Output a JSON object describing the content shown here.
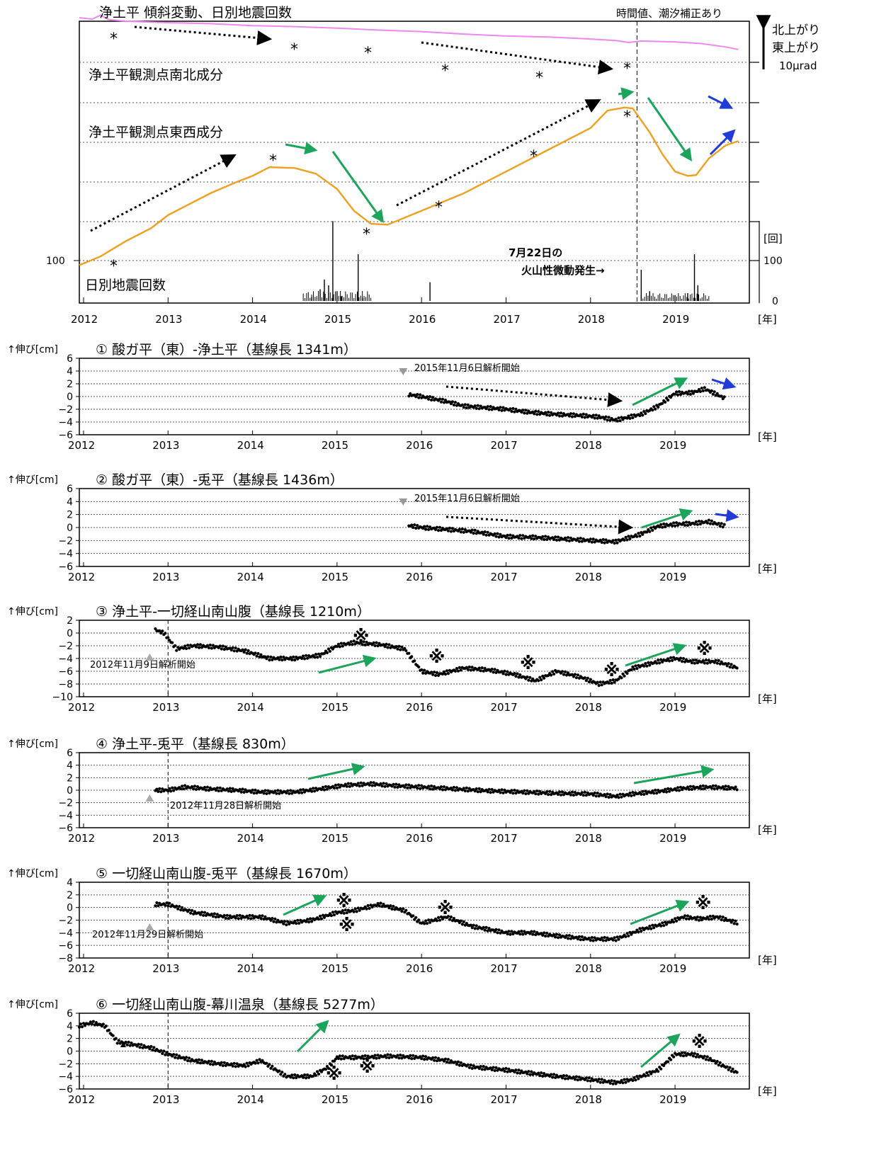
{
  "top_panel": {
    "title": "浄土平 傾斜変動、日別地震回数",
    "note": "時間値、潮汐補正あり",
    "scale_label_1": "北上がり",
    "scale_label_2": "東上がり",
    "scale_value": "10μrad",
    "event_label_1": "7月22日の",
    "event_label_2": "火山性微動発生→"
  },
  "chart_data": [
    {
      "type": "line",
      "title": "浄土平 傾斜変動、日別地震回数",
      "xlabel": "[年]",
      "x_ticks": [
        "2012",
        "2013",
        "2014",
        "2015",
        "2016",
        "2017",
        "2018",
        "2019"
      ],
      "series": [
        {
          "name": "浄土平観測点南北成分",
          "color": "#ee88ee",
          "x": [
            2011.95,
            2012.1,
            2012.2,
            2012.3,
            2012.5,
            2012.8,
            2013.0,
            2013.5,
            2014.0,
            2014.5,
            2015.0,
            2015.5,
            2016.0,
            2016.5,
            2017.0,
            2017.5,
            2018.0,
            2018.3,
            2018.45,
            2018.6,
            2019.0,
            2019.3,
            2019.6,
            2019.75
          ],
          "y": [
            5.0,
            4.7,
            5.5,
            4.6,
            4.3,
            4.1,
            4.0,
            3.8,
            3.4,
            3.2,
            2.9,
            2.5,
            2.2,
            1.7,
            1.3,
            1.1,
            0.7,
            0.4,
            0.0,
            0.3,
            0.1,
            -0.2,
            -0.9,
            -1.4
          ]
        },
        {
          "name": "浄土平観測点東西成分",
          "color": "#f0a020",
          "x": [
            2011.95,
            2012.2,
            2012.5,
            2012.8,
            2013.0,
            2013.5,
            2013.8,
            2014.0,
            2014.2,
            2014.5,
            2014.75,
            2015.0,
            2015.2,
            2015.4,
            2015.6,
            2016.0,
            2016.5,
            2017.0,
            2017.5,
            2018.0,
            2018.2,
            2018.4,
            2018.5,
            2018.7,
            2018.85,
            2019.0,
            2019.15,
            2019.25,
            2019.4,
            2019.6,
            2019.75
          ],
          "y": [
            -36.5,
            -34.5,
            -31,
            -28,
            -25,
            -20,
            -17.5,
            -16,
            -14,
            -14.2,
            -15.5,
            -19,
            -24,
            -27,
            -27.2,
            -24,
            -20,
            -15,
            -10,
            -5,
            -1,
            -0.3,
            -0.5,
            -6,
            -11,
            -15,
            -16,
            -15.8,
            -12,
            -9,
            -8
          ]
        }
      ],
      "bar_series": {
        "name": "日別地震回数",
        "x": [
          2014.7,
          2014.8,
          2014.85,
          2014.9,
          2014.95,
          2015.0,
          2015.05,
          2015.25,
          2015.3,
          2016.1,
          2018.6,
          2018.7,
          2019.0,
          2019.15,
          2019.23,
          2019.27
        ],
        "y": [
          10,
          30,
          55,
          40,
          205,
          25,
          12,
          120,
          8,
          48,
          80,
          25,
          15,
          20,
          120,
          40
        ]
      },
      "right_axis_label": "[回]",
      "right_axis_ticks": [
        "100",
        "0"
      ],
      "left_axis_ticks": [
        "100"
      ],
      "labels": [
        "浄土平観測点南北成分",
        "浄土平観測点東西成分",
        "日別地震回数"
      ],
      "event_marker_x": 2018.55
    },
    {
      "type": "scatter",
      "title": "① 酸ガ平（東）-浄土平（基線長 1341m）",
      "ylabel": "↑伸び[cm]",
      "xlabel": "[年]",
      "ylim": [
        -6,
        6
      ],
      "yticks": [
        "6",
        "4",
        "2",
        "0",
        "−2",
        "−4",
        "−6"
      ],
      "annotation": "2015年11月6日解析開始",
      "x": [
        2015.85,
        2016.0,
        2016.3,
        2016.5,
        2016.8,
        2017.0,
        2017.3,
        2017.6,
        2017.9,
        2018.1,
        2018.3,
        2018.6,
        2018.8,
        2019.0,
        2019.2,
        2019.35,
        2019.5,
        2019.6
      ],
      "y": [
        0.3,
        0.0,
        -0.8,
        -1.5,
        -1.8,
        -2.0,
        -2.5,
        -2.8,
        -3.0,
        -3.2,
        -3.7,
        -2.8,
        -1.5,
        0.5,
        0.6,
        1.2,
        0.3,
        -0.4
      ]
    },
    {
      "type": "scatter",
      "title": "② 酸ガ平（東）-兎平（基線長 1436m）",
      "ylabel": "↑伸び[cm]",
      "xlabel": "[年]",
      "ylim": [
        -6,
        6
      ],
      "yticks": [
        "6",
        "4",
        "2",
        "0",
        "−2",
        "−4",
        "−6"
      ],
      "annotation": "2015年11月6日解析開始",
      "x": [
        2015.85,
        2016.0,
        2016.3,
        2016.6,
        2017.0,
        2017.3,
        2017.6,
        2018.0,
        2018.3,
        2018.6,
        2018.8,
        2019.0,
        2019.2,
        2019.4,
        2019.6
      ],
      "y": [
        0.3,
        0.0,
        -0.3,
        -0.6,
        -1.4,
        -1.5,
        -1.7,
        -2.0,
        -2.2,
        -1.0,
        0.2,
        0.5,
        0.6,
        0.9,
        0.2
      ]
    },
    {
      "type": "scatter",
      "title": "③ 浄土平-一切経山南山腹（基線長 1210m）",
      "ylabel": "↑伸び[cm]",
      "xlabel": "[年]",
      "ylim": [
        -10,
        2
      ],
      "yticks": [
        "2",
        "0",
        "−2",
        "−4",
        "−6",
        "−8",
        "−10"
      ],
      "annotation": "2012年11月9日解析開始",
      "x": [
        2012.85,
        2012.95,
        2013.1,
        2013.3,
        2013.6,
        2013.9,
        2014.2,
        2014.5,
        2014.8,
        2015.0,
        2015.2,
        2015.5,
        2015.8,
        2016.0,
        2016.2,
        2016.5,
        2016.8,
        2017.1,
        2017.35,
        2017.6,
        2017.9,
        2018.1,
        2018.3,
        2018.5,
        2018.8,
        2019.0,
        2019.2,
        2019.5,
        2019.75
      ],
      "y": [
        0.5,
        0.0,
        -2.5,
        -2.0,
        -2.2,
        -2.8,
        -4.0,
        -4.0,
        -3.5,
        -2.0,
        -1.5,
        -1.8,
        -2.5,
        -6.0,
        -6.5,
        -5.5,
        -5.8,
        -6.5,
        -7.5,
        -6.0,
        -7.0,
        -8.0,
        -7.5,
        -5.5,
        -4.5,
        -4.0,
        -4.5,
        -4.5,
        -5.5
      ]
    },
    {
      "type": "scatter",
      "title": "④ 浄土平-兎平（基線長 830m）",
      "ylabel": "↑伸び[cm]",
      "xlabel": "[年]",
      "ylim": [
        -6,
        6
      ],
      "yticks": [
        "6",
        "4",
        "2",
        "0",
        "−2",
        "−4",
        "−6"
      ],
      "annotation": "2012年11月28日解析開始",
      "x": [
        2012.85,
        2013.0,
        2013.2,
        2013.5,
        2013.8,
        2014.1,
        2014.5,
        2014.8,
        2015.1,
        2015.4,
        2015.7,
        2016.0,
        2016.4,
        2016.8,
        2017.2,
        2017.6,
        2018.0,
        2018.3,
        2018.5,
        2018.8,
        2019.1,
        2019.4,
        2019.75
      ],
      "y": [
        0.0,
        0.0,
        0.5,
        0.2,
        0.0,
        -0.3,
        -0.3,
        0.2,
        0.8,
        1.0,
        0.7,
        0.5,
        0.2,
        -0.1,
        -0.3,
        -0.5,
        -0.6,
        -1.0,
        -0.6,
        -0.2,
        0.3,
        0.5,
        0.3
      ]
    },
    {
      "type": "scatter",
      "title": "⑤ 一切経山南山腹-兎平（基線長 1670m）",
      "ylabel": "↑伸び[cm]",
      "xlabel": "[年]",
      "ylim": [
        -8,
        4
      ],
      "yticks": [
        "4",
        "2",
        "0",
        "−2",
        "−4",
        "−6",
        "−8"
      ],
      "annotation": "2012年11月29日解析開始",
      "x": [
        2012.85,
        2013.0,
        2013.3,
        2013.7,
        2014.1,
        2014.4,
        2014.7,
        2015.0,
        2015.2,
        2015.5,
        2015.8,
        2016.0,
        2016.3,
        2016.6,
        2017.0,
        2017.3,
        2017.6,
        2018.0,
        2018.3,
        2018.6,
        2018.9,
        2019.1,
        2019.3,
        2019.5,
        2019.75
      ],
      "y": [
        0.5,
        0.5,
        -0.8,
        -1.5,
        -1.5,
        -2.5,
        -2.0,
        -0.8,
        -0.5,
        0.5,
        -0.5,
        -2.5,
        -1.5,
        -3.0,
        -4.0,
        -4.0,
        -4.5,
        -5.0,
        -5.0,
        -3.5,
        -2.5,
        -1.5,
        -1.8,
        -1.5,
        -2.5
      ]
    },
    {
      "type": "scatter",
      "title": "⑥ 一切経山南山腹-幕川温泉（基線長 5277m）",
      "ylabel": "↑伸び[cm]",
      "xlabel": "[年]",
      "ylim": [
        -6,
        6
      ],
      "yticks": [
        "6",
        "4",
        "2",
        "0",
        "−2",
        "−4",
        "−6"
      ],
      "x": [
        2011.95,
        2012.1,
        2012.25,
        2012.4,
        2012.6,
        2012.8,
        2013.0,
        2013.3,
        2013.6,
        2013.9,
        2014.1,
        2014.4,
        2014.7,
        2014.9,
        2015.0,
        2015.3,
        2015.6,
        2016.0,
        2016.3,
        2016.6,
        2017.0,
        2017.3,
        2017.6,
        2018.0,
        2018.3,
        2018.5,
        2018.8,
        2019.0,
        2019.2,
        2019.4,
        2019.75
      ],
      "y": [
        4.0,
        4.5,
        4.0,
        1.5,
        1.0,
        0.5,
        -0.5,
        -1.5,
        -2.0,
        -2.3,
        -1.5,
        -4.0,
        -4.0,
        -2.5,
        -1.0,
        -1.0,
        -0.8,
        -1.0,
        -1.5,
        -2.5,
        -3.0,
        -3.5,
        -4.0,
        -4.5,
        -5.0,
        -4.5,
        -3.0,
        -0.5,
        -0.5,
        -1.2,
        -3.5
      ]
    }
  ]
}
